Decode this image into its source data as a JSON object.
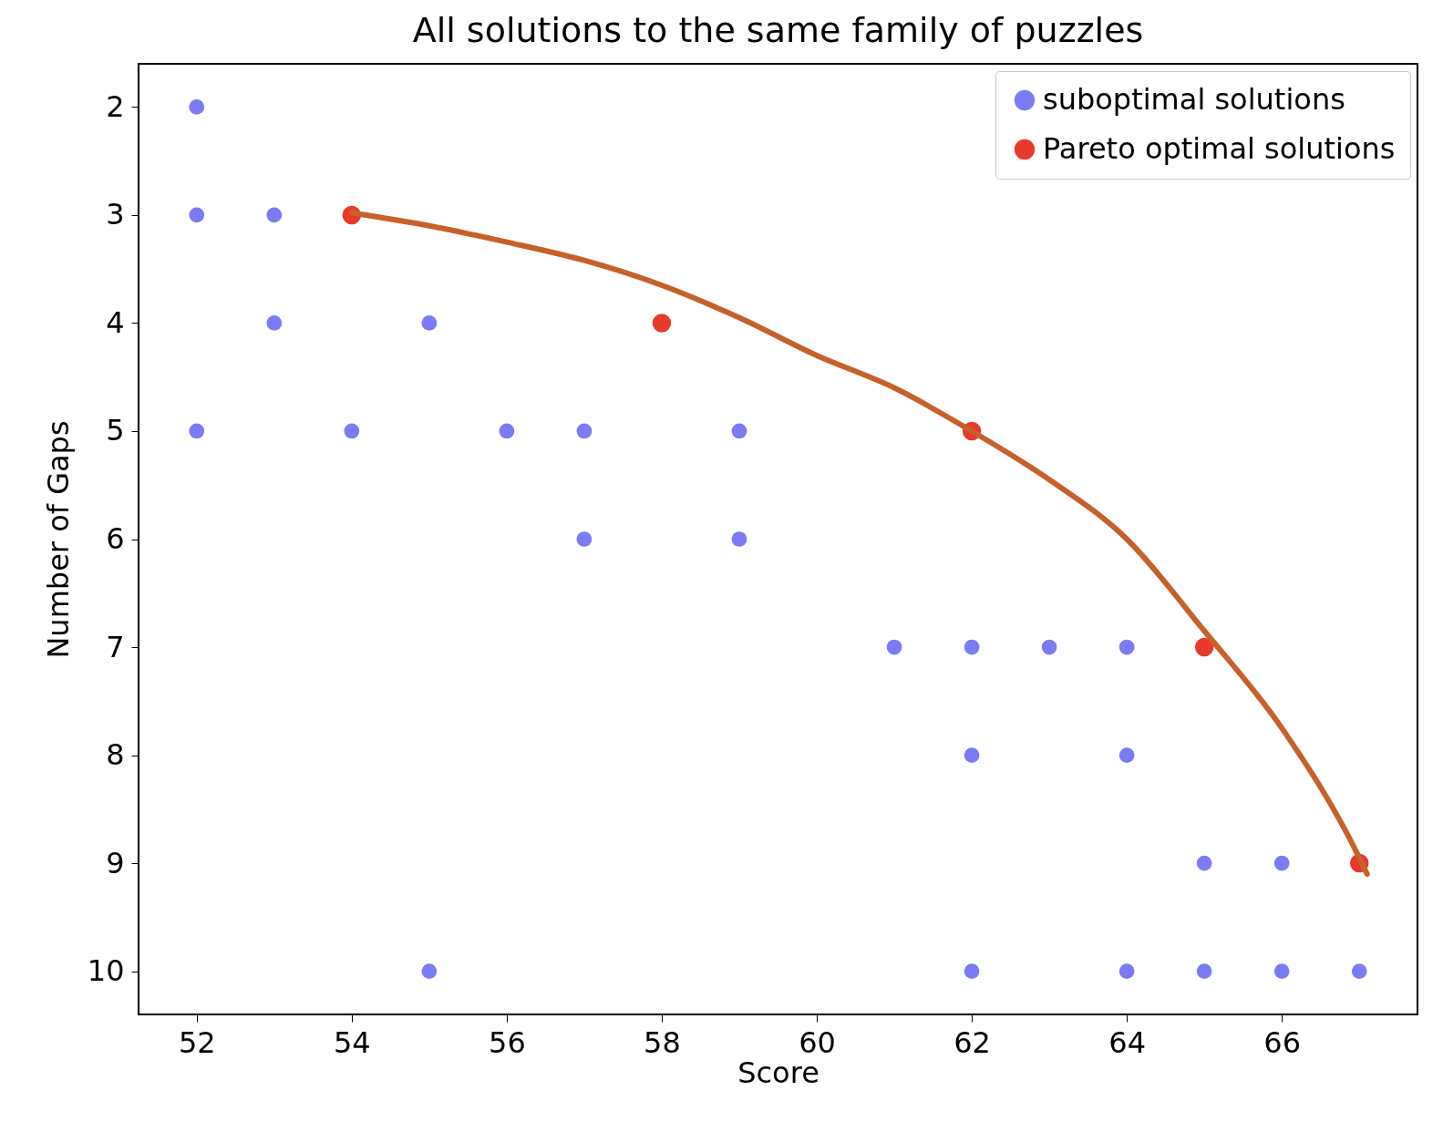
{
  "chart_data": {
    "type": "scatter",
    "title": "All solutions to the same family of puzzles",
    "xlabel": "Score",
    "ylabel": "Number of Gaps",
    "xlim": [
      51.25,
      67.75
    ],
    "xticks": [
      52,
      54,
      56,
      58,
      60,
      62,
      64,
      66
    ],
    "ylim": [
      10.4,
      1.6
    ],
    "yticks": [
      2,
      3,
      4,
      5,
      6,
      7,
      8,
      9,
      10
    ],
    "grid": false,
    "legend": "top right",
    "series": [
      {
        "name": "suboptimal solutions",
        "marker": "circle",
        "color": "#7b7bf5",
        "x": [
          52,
          52,
          52,
          53,
          53,
          54,
          55,
          55,
          56,
          57,
          57,
          59,
          59,
          61,
          62,
          62,
          62,
          63,
          64,
          64,
          64,
          65,
          65,
          66,
          66,
          67
        ],
        "values": [
          2,
          3,
          5,
          3,
          4,
          5,
          4,
          10,
          5,
          5,
          6,
          5,
          6,
          7,
          7,
          8,
          10,
          7,
          7,
          8,
          10,
          9,
          10,
          9,
          10,
          10
        ]
      },
      {
        "name": "Pareto optimal solutions",
        "marker": "circle",
        "color": "#e8392b",
        "x": [
          54,
          58,
          62,
          65,
          67
        ],
        "values": [
          3,
          4,
          5,
          7,
          9
        ]
      },
      {
        "type": "line",
        "color": "#c8602a",
        "x": [
          54,
          55,
          56,
          57,
          58,
          59,
          60,
          61,
          62,
          63,
          64,
          65,
          66,
          67,
          67.1
        ],
        "values": [
          2.98,
          3.1,
          3.25,
          3.42,
          3.65,
          3.95,
          4.3,
          4.6,
          5.0,
          5.45,
          6.0,
          6.85,
          7.75,
          8.95,
          9.1
        ]
      }
    ]
  }
}
